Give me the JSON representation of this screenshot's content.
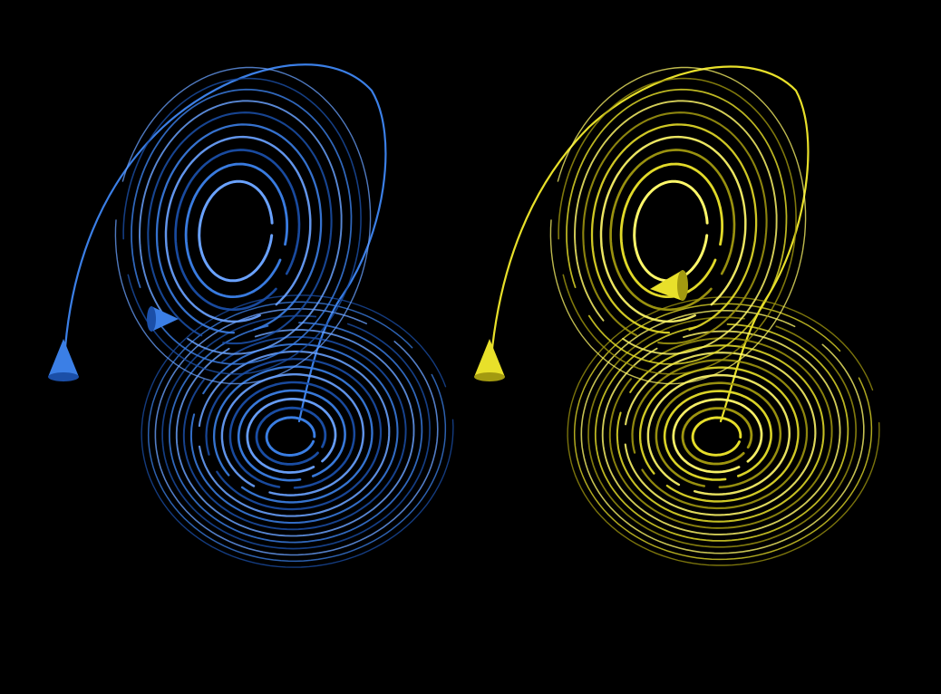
{
  "background_color": "#000000",
  "attractors": [
    {
      "name": "blue-trajectory",
      "color": "#3b7fe6",
      "highlight_color": "#6aa2ff",
      "shadow_color": "#1b4fa8"
    },
    {
      "name": "yellow-trajectory",
      "color": "#e8e02a",
      "highlight_color": "#fff86a",
      "shadow_color": "#a39a10"
    }
  ]
}
